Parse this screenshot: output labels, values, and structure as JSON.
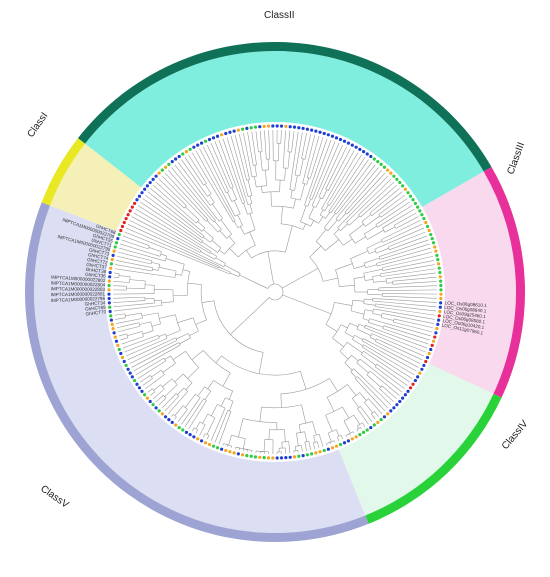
{
  "figure": {
    "classes": [
      {
        "name": "ClassI",
        "color": "#e8e824",
        "band_fill": "#f4f0b8"
      },
      {
        "name": "ClassII",
        "color": "#0f7157",
        "band_fill": "#80eede"
      },
      {
        "name": "ClassIII",
        "color": "#e7309a",
        "band_fill": "#f8d9ee"
      },
      {
        "name": "ClassIV",
        "color": "#2ad23a",
        "band_fill": "#e2f8ea"
      },
      {
        "name": "ClassV",
        "color": "#9da3d2",
        "band_fill": "#dcdef3"
      }
    ],
    "marker_colors": {
      "blue": "#1f3fd0",
      "green": "#2ccc44",
      "orange": "#f3a523",
      "red": "#e2231a"
    },
    "leaf_labels": {
      "classV_top": [
        "GhHCT70",
        "GhHCT69",
        "GhHCT34",
        "IMPTCA1M000000022796",
        "IMPTCA1M000000022801",
        "IMPTCA1M000000022803",
        "IMPTCA1M000000022804",
        "IMPTCA1M000000022802",
        "GhHCT36",
        "GhHCT38",
        "GhHCT37",
        "GhHCT72",
        "GhHCT74",
        "GhHCT73",
        "IMPTCA1M000000022795",
        "GhHCT71",
        "GhHCT35",
        "IMPTCA1M000000022799",
        "GhHCT68"
      ],
      "classIV_top": [
        "LOC_Os06g08610.1",
        "LOC_Os06g08640.1",
        "LOC_Os09g25460.1",
        "LOC_Os06g08580.1",
        "LOC_Os06g10420.1",
        "LOC_Os12g07960.1"
      ]
    }
  }
}
